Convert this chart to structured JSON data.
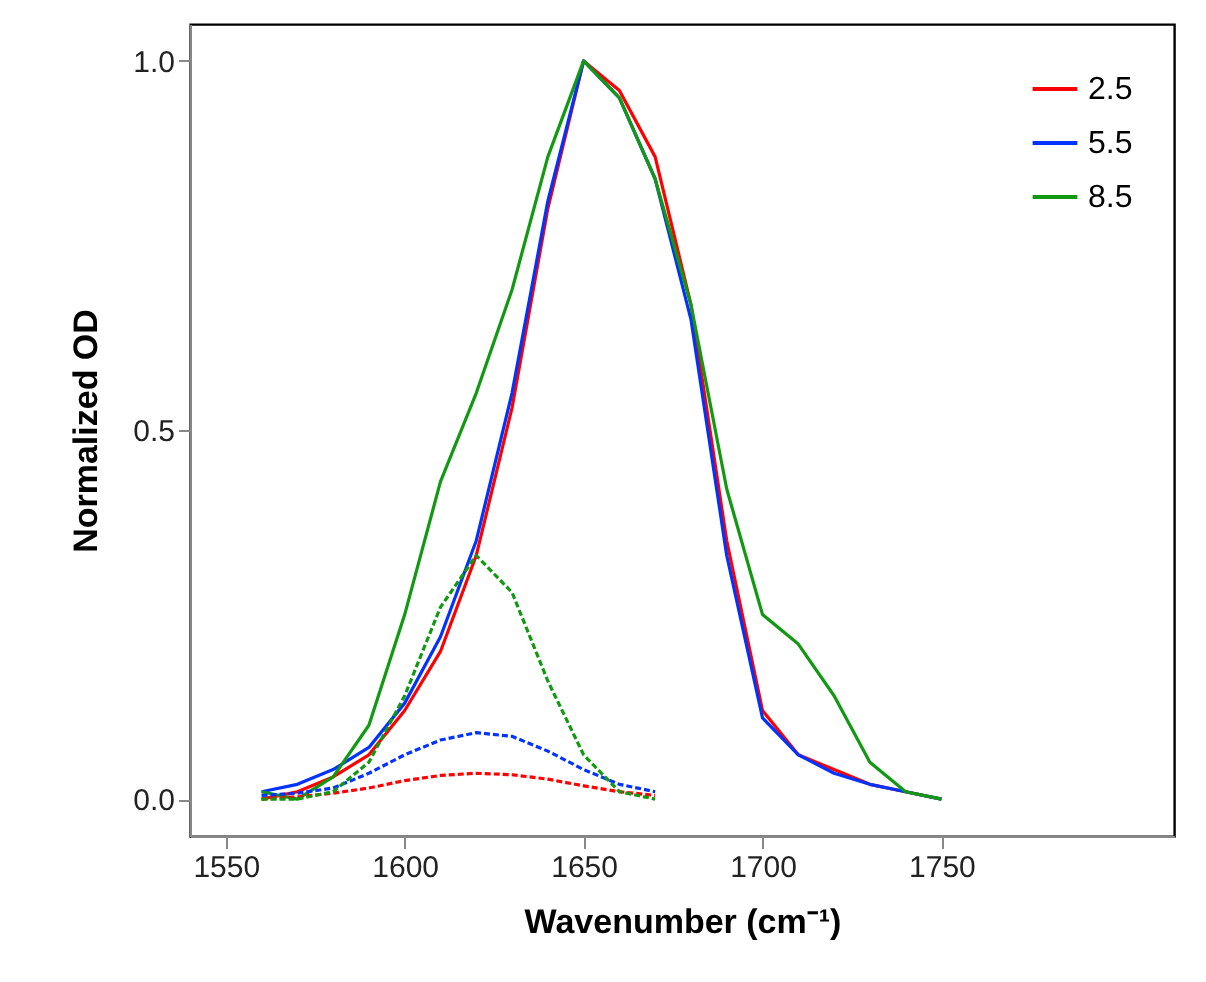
{
  "chart_data": {
    "type": "line",
    "xlabel": "Wavenumber (cm⁻¹)",
    "ylabel": "Normalized OD",
    "xlim": [
      1540,
      1815
    ],
    "ylim": [
      -0.05,
      1.05
    ],
    "xticks": [
      1550,
      1600,
      1650,
      1700,
      1750
    ],
    "yticks": [
      {
        "value": 0,
        "label": "0.0"
      },
      {
        "value": 0.5,
        "label": "0.5"
      },
      {
        "value": 1,
        "label": "1.0"
      }
    ],
    "grid": false,
    "legend": "top right",
    "series": [
      {
        "name": "2.5",
        "color": "#ff0000",
        "line_style": "solid",
        "x": [
          1560,
          1570,
          1580,
          1590,
          1600,
          1610,
          1620,
          1630,
          1640,
          1650,
          1660,
          1670,
          1680,
          1690,
          1700,
          1710,
          1720,
          1730,
          1740,
          1750
        ],
        "values": [
          0.0,
          0.01,
          0.03,
          0.06,
          0.12,
          0.2,
          0.33,
          0.53,
          0.8,
          1.0,
          0.96,
          0.87,
          0.67,
          0.35,
          0.12,
          0.06,
          0.04,
          0.02,
          0.01,
          0.0
        ]
      },
      {
        "name": "5.5",
        "color": "#0033ff",
        "line_style": "solid",
        "x": [
          1560,
          1570,
          1580,
          1590,
          1600,
          1610,
          1620,
          1630,
          1640,
          1650,
          1660,
          1670,
          1680,
          1690,
          1700,
          1710,
          1720,
          1730,
          1740,
          1750
        ],
        "values": [
          0.01,
          0.02,
          0.04,
          0.07,
          0.13,
          0.22,
          0.35,
          0.55,
          0.81,
          1.0,
          0.95,
          0.84,
          0.65,
          0.33,
          0.11,
          0.06,
          0.035,
          0.02,
          0.01,
          0.0
        ]
      },
      {
        "name": "8.5",
        "color": "#119911",
        "line_style": "solid",
        "x": [
          1560,
          1570,
          1580,
          1590,
          1600,
          1610,
          1620,
          1630,
          1640,
          1650,
          1660,
          1670,
          1680,
          1690,
          1700,
          1710,
          1720,
          1730,
          1740,
          1750
        ],
        "values": [
          0.01,
          0.0,
          0.03,
          0.1,
          0.25,
          0.43,
          0.55,
          0.69,
          0.87,
          1.0,
          0.95,
          0.84,
          0.67,
          0.42,
          0.25,
          0.21,
          0.14,
          0.05,
          0.01,
          0.0
        ]
      },
      {
        "color": "#ff0000",
        "line_style": "dashed",
        "x": [
          1560,
          1570,
          1580,
          1590,
          1600,
          1610,
          1620,
          1630,
          1640,
          1650,
          1660,
          1670
        ],
        "values": [
          0.0,
          0.003,
          0.008,
          0.015,
          0.025,
          0.032,
          0.035,
          0.033,
          0.027,
          0.018,
          0.01,
          0.005
        ]
      },
      {
        "color": "#0033ff",
        "line_style": "dashed",
        "x": [
          1560,
          1570,
          1580,
          1590,
          1600,
          1610,
          1620,
          1630,
          1640,
          1650,
          1660,
          1670
        ],
        "values": [
          0.005,
          0.008,
          0.015,
          0.035,
          0.06,
          0.08,
          0.09,
          0.085,
          0.065,
          0.04,
          0.02,
          0.01
        ]
      },
      {
        "color": "#119911",
        "line_style": "dashed",
        "x": [
          1560,
          1570,
          1580,
          1590,
          1600,
          1610,
          1620,
          1630,
          1640,
          1650,
          1660,
          1670
        ],
        "values": [
          0.0,
          0.0,
          0.01,
          0.05,
          0.14,
          0.26,
          0.33,
          0.28,
          0.16,
          0.06,
          0.01,
          0.0
        ]
      }
    ]
  }
}
